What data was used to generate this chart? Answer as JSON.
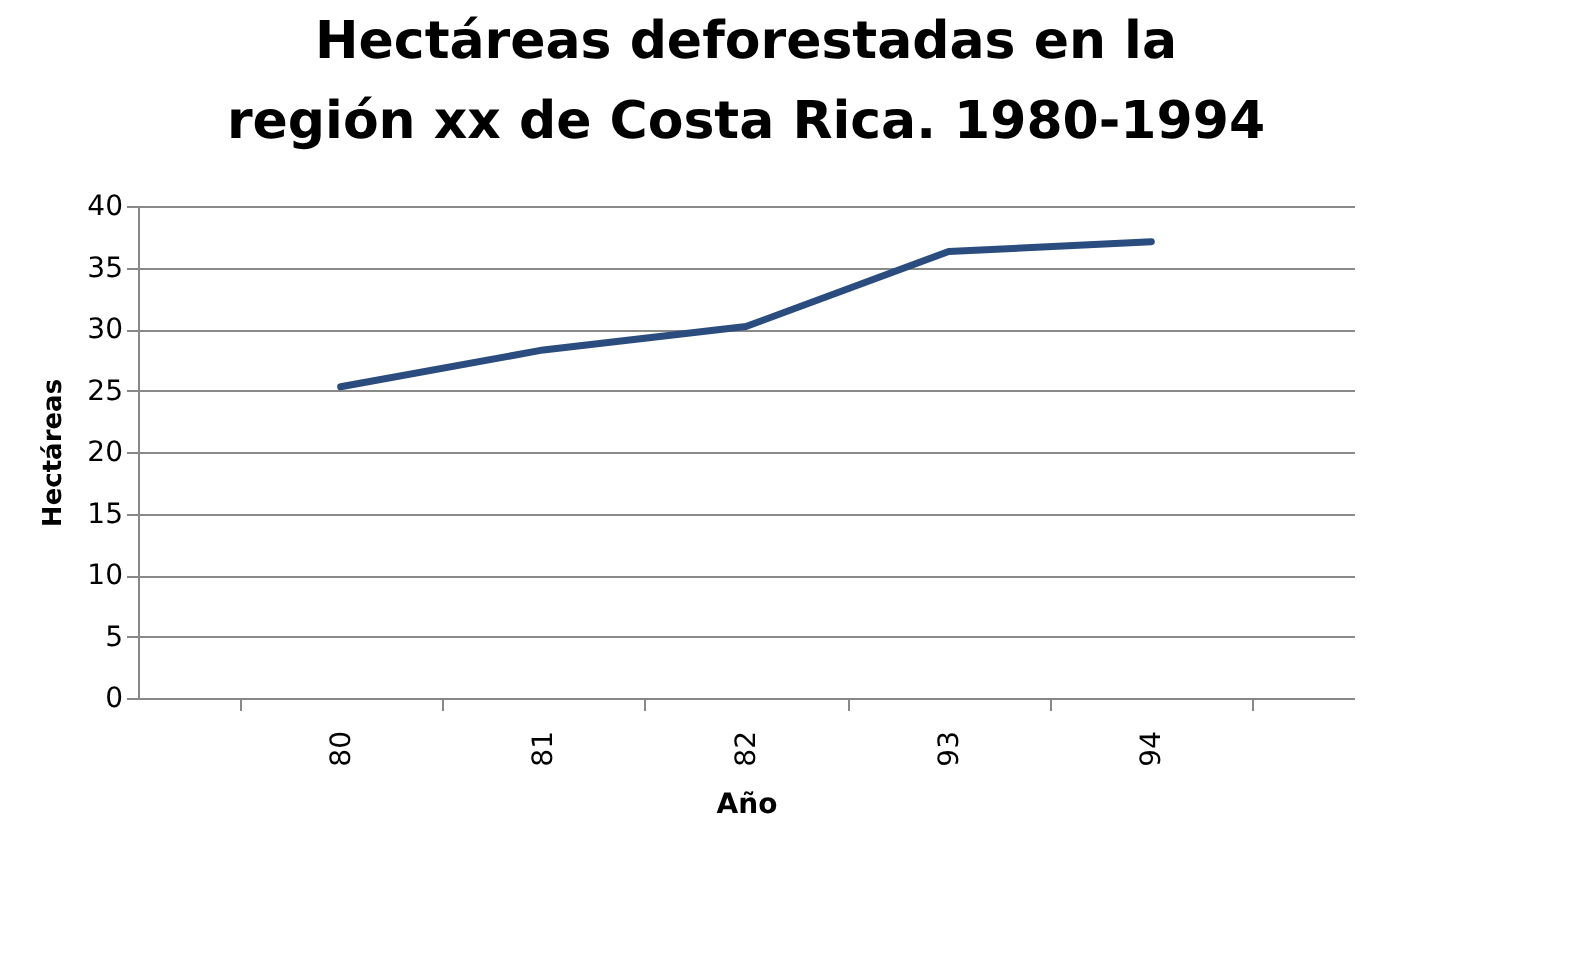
{
  "chart_data": {
    "type": "line",
    "title": "Hectáreas deforestadas en la región xx de Costa Rica. 1980-1994",
    "xlabel": "Año",
    "ylabel": "Hectáreas",
    "categories": [
      "80",
      "81",
      "82",
      "93",
      "94"
    ],
    "series": [
      {
        "color": "#2b4c7e",
        "values": [
          25.3,
          28.3,
          30.2,
          36.3,
          37.1
        ]
      }
    ],
    "ylim": [
      0,
      40
    ],
    "yticks": [
      0,
      5,
      10,
      15,
      20,
      25,
      30,
      35,
      40
    ],
    "grid": "y",
    "legend": false,
    "marker": "none",
    "line_style": "solid"
  }
}
